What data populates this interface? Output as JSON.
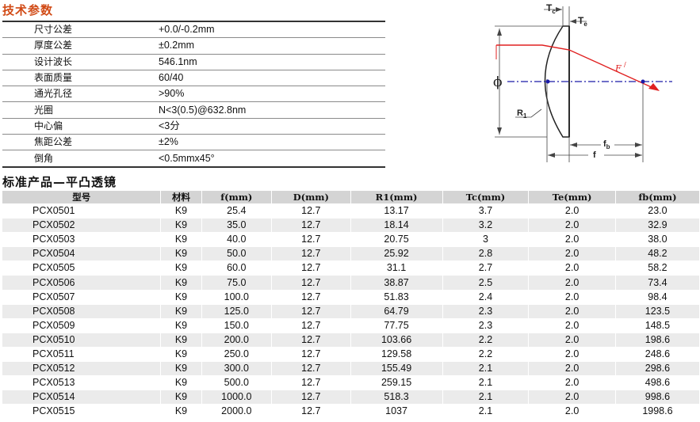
{
  "section1_title": "技术参数",
  "section2_title": "标准产品—平凸透镜",
  "params": [
    {
      "label": "尺寸公差",
      "value": "+0.0/-0.2mm"
    },
    {
      "label": "厚度公差",
      "value": "±0.2mm"
    },
    {
      "label": "设计波长",
      "value": "546.1nm"
    },
    {
      "label": "表面质量",
      "value": "60/40"
    },
    {
      "label": "通光孔径",
      "value": ">90%"
    },
    {
      "label": "光圈",
      "value": "N<3(0.5)@632.8nm"
    },
    {
      "label": "中心偏",
      "value": "<3分"
    },
    {
      "label": "焦距公差",
      "value": "±2%"
    },
    {
      "label": "倒角",
      "value": "<0.5mmx45°"
    }
  ],
  "diagram": {
    "tc": "T",
    "tc_sub": "c",
    "te": "T",
    "te_sub": "e",
    "phi": "ϕ",
    "r1": "R",
    "r1_sub": "1",
    "fprime": "F",
    "fb": "f",
    "fb_sub": "b",
    "f": "f"
  },
  "products": {
    "headers": [
      "型号",
      "材料",
      "f(mm)",
      "D(mm)",
      "R1(mm)",
      "Tc(mm)",
      "Te(mm)",
      "fb(mm)"
    ],
    "rows": [
      [
        "PCX0501",
        "K9",
        "25.4",
        "12.7",
        "13.17",
        "3.7",
        "2.0",
        "23.0"
      ],
      [
        "PCX0502",
        "K9",
        "35.0",
        "12.7",
        "18.14",
        "3.2",
        "2.0",
        "32.9"
      ],
      [
        "PCX0503",
        "K9",
        "40.0",
        "12.7",
        "20.75",
        "3",
        "2.0",
        "38.0"
      ],
      [
        "PCX0504",
        "K9",
        "50.0",
        "12.7",
        "25.92",
        "2.8",
        "2.0",
        "48.2"
      ],
      [
        "PCX0505",
        "K9",
        "60.0",
        "12.7",
        "31.1",
        "2.7",
        "2.0",
        "58.2"
      ],
      [
        "PCX0506",
        "K9",
        "75.0",
        "12.7",
        "38.87",
        "2.5",
        "2.0",
        "73.4"
      ],
      [
        "PCX0507",
        "K9",
        "100.0",
        "12.7",
        "51.83",
        "2.4",
        "2.0",
        "98.4"
      ],
      [
        "PCX0508",
        "K9",
        "125.0",
        "12.7",
        "64.79",
        "2.3",
        "2.0",
        "123.5"
      ],
      [
        "PCX0509",
        "K9",
        "150.0",
        "12.7",
        "77.75",
        "2.3",
        "2.0",
        "148.5"
      ],
      [
        "PCX0510",
        "K9",
        "200.0",
        "12.7",
        "103.66",
        "2.2",
        "2.0",
        "198.6"
      ],
      [
        "PCX0511",
        "K9",
        "250.0",
        "12.7",
        "129.58",
        "2.2",
        "2.0",
        "248.6"
      ],
      [
        "PCX0512",
        "K9",
        "300.0",
        "12.7",
        "155.49",
        "2.1",
        "2.0",
        "298.6"
      ],
      [
        "PCX0513",
        "K9",
        "500.0",
        "12.7",
        "259.15",
        "2.1",
        "2.0",
        "498.6"
      ],
      [
        "PCX0514",
        "K9",
        "1000.0",
        "12.7",
        "518.3",
        "2.1",
        "2.0",
        "998.6"
      ],
      [
        "PCX0515",
        "K9",
        "2000.0",
        "12.7",
        "1037",
        "2.1",
        "2.0",
        "1998.6"
      ]
    ]
  }
}
